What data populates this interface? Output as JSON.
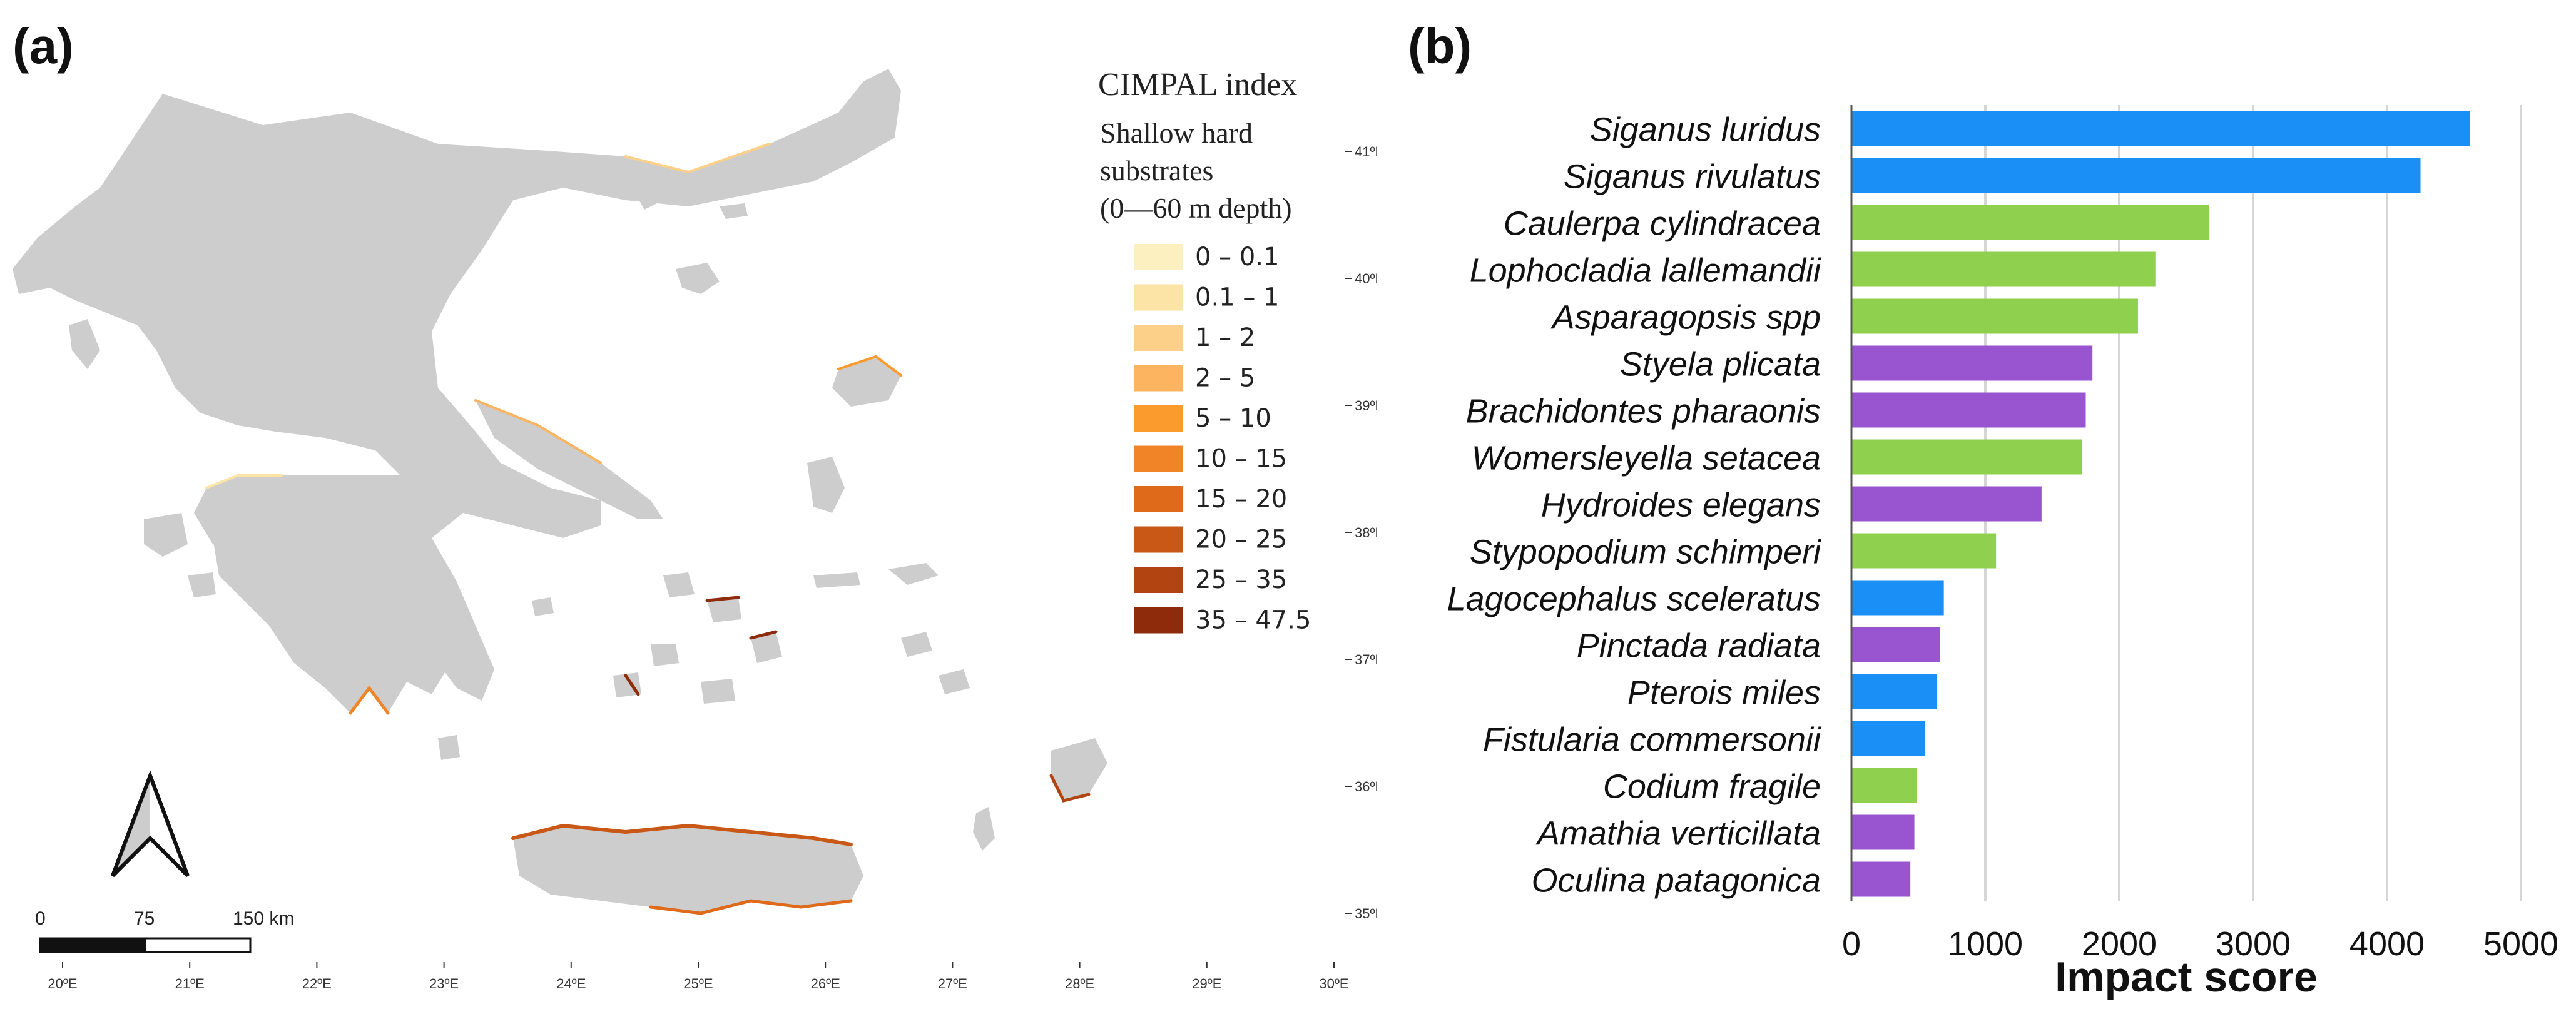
{
  "panel_a_label": "(a)",
  "panel_b_label": "(b)",
  "map": {
    "legend_title": "CIMPAL index",
    "legend_subtitle_lines": [
      "Shallow hard",
      "substrates",
      "(0—60 m depth)"
    ],
    "legend_classes": [
      {
        "label": "0 – 0.1",
        "color": "#fdf0c0"
      },
      {
        "label": "0.1 – 1",
        "color": "#fce3a6"
      },
      {
        "label": "1 – 2",
        "color": "#fdd08a"
      },
      {
        "label": "2 – 5",
        "color": "#fdb460"
      },
      {
        "label": "5 – 10",
        "color": "#fb9a2d"
      },
      {
        "label": "10 – 15",
        "color": "#f08427"
      },
      {
        "label": "15 – 20",
        "color": "#de6a1a"
      },
      {
        "label": "20 – 25",
        "color": "#c95715"
      },
      {
        "label": "25 – 35",
        "color": "#b14410"
      },
      {
        "label": "35 – 47.5",
        "color": "#8e2b0a"
      }
    ],
    "lat_labels": [
      "41ºN",
      "40ºN",
      "39ºN",
      "38ºN",
      "37ºN",
      "36ºN",
      "35ºN"
    ],
    "lon_labels": [
      "20ºE",
      "21ºE",
      "22ºE",
      "23ºE",
      "24ºE",
      "25ºE",
      "26ºE",
      "27ºE",
      "28ºE",
      "29ºE",
      "30ºE"
    ],
    "scale_labels": [
      "0",
      "75",
      "150 km"
    ],
    "land_color": "#cdcdcd"
  },
  "chart_data": {
    "type": "bar",
    "orientation": "horizontal",
    "xlabel": "Impact score",
    "xlim": [
      0,
      5000
    ],
    "xticks": [
      0,
      1000,
      2000,
      3000,
      4000,
      5000
    ],
    "grid": true,
    "categories": [
      "Siganus luridus",
      "Siganus rivulatus",
      "Caulerpa cylindracea",
      "Lophocladia lallemandii",
      "Asparagopsis spp",
      "Styela plicata",
      "Brachidontes pharaonis",
      "Womersleyella setacea",
      "Hydroides elegans",
      "Stypopodium schimperi",
      "Lagocephalus sceleratus",
      "Pinctada radiata",
      "Pterois miles",
      "Fistularia commersonii",
      "Codium fragile",
      "Amathia verticillata",
      "Oculina patagonica"
    ],
    "values": [
      4620,
      4250,
      2670,
      2270,
      2140,
      1800,
      1750,
      1720,
      1420,
      1080,
      690,
      660,
      640,
      550,
      490,
      470,
      440
    ],
    "bar_colors": [
      "#1a8ff5",
      "#1a8ff5",
      "#8fd14f",
      "#8fd14f",
      "#8fd14f",
      "#9955cf",
      "#9955cf",
      "#8fd14f",
      "#9955cf",
      "#8fd14f",
      "#1a8ff5",
      "#9955cf",
      "#1a8ff5",
      "#1a8ff5",
      "#8fd14f",
      "#9955cf",
      "#9955cf"
    ]
  }
}
